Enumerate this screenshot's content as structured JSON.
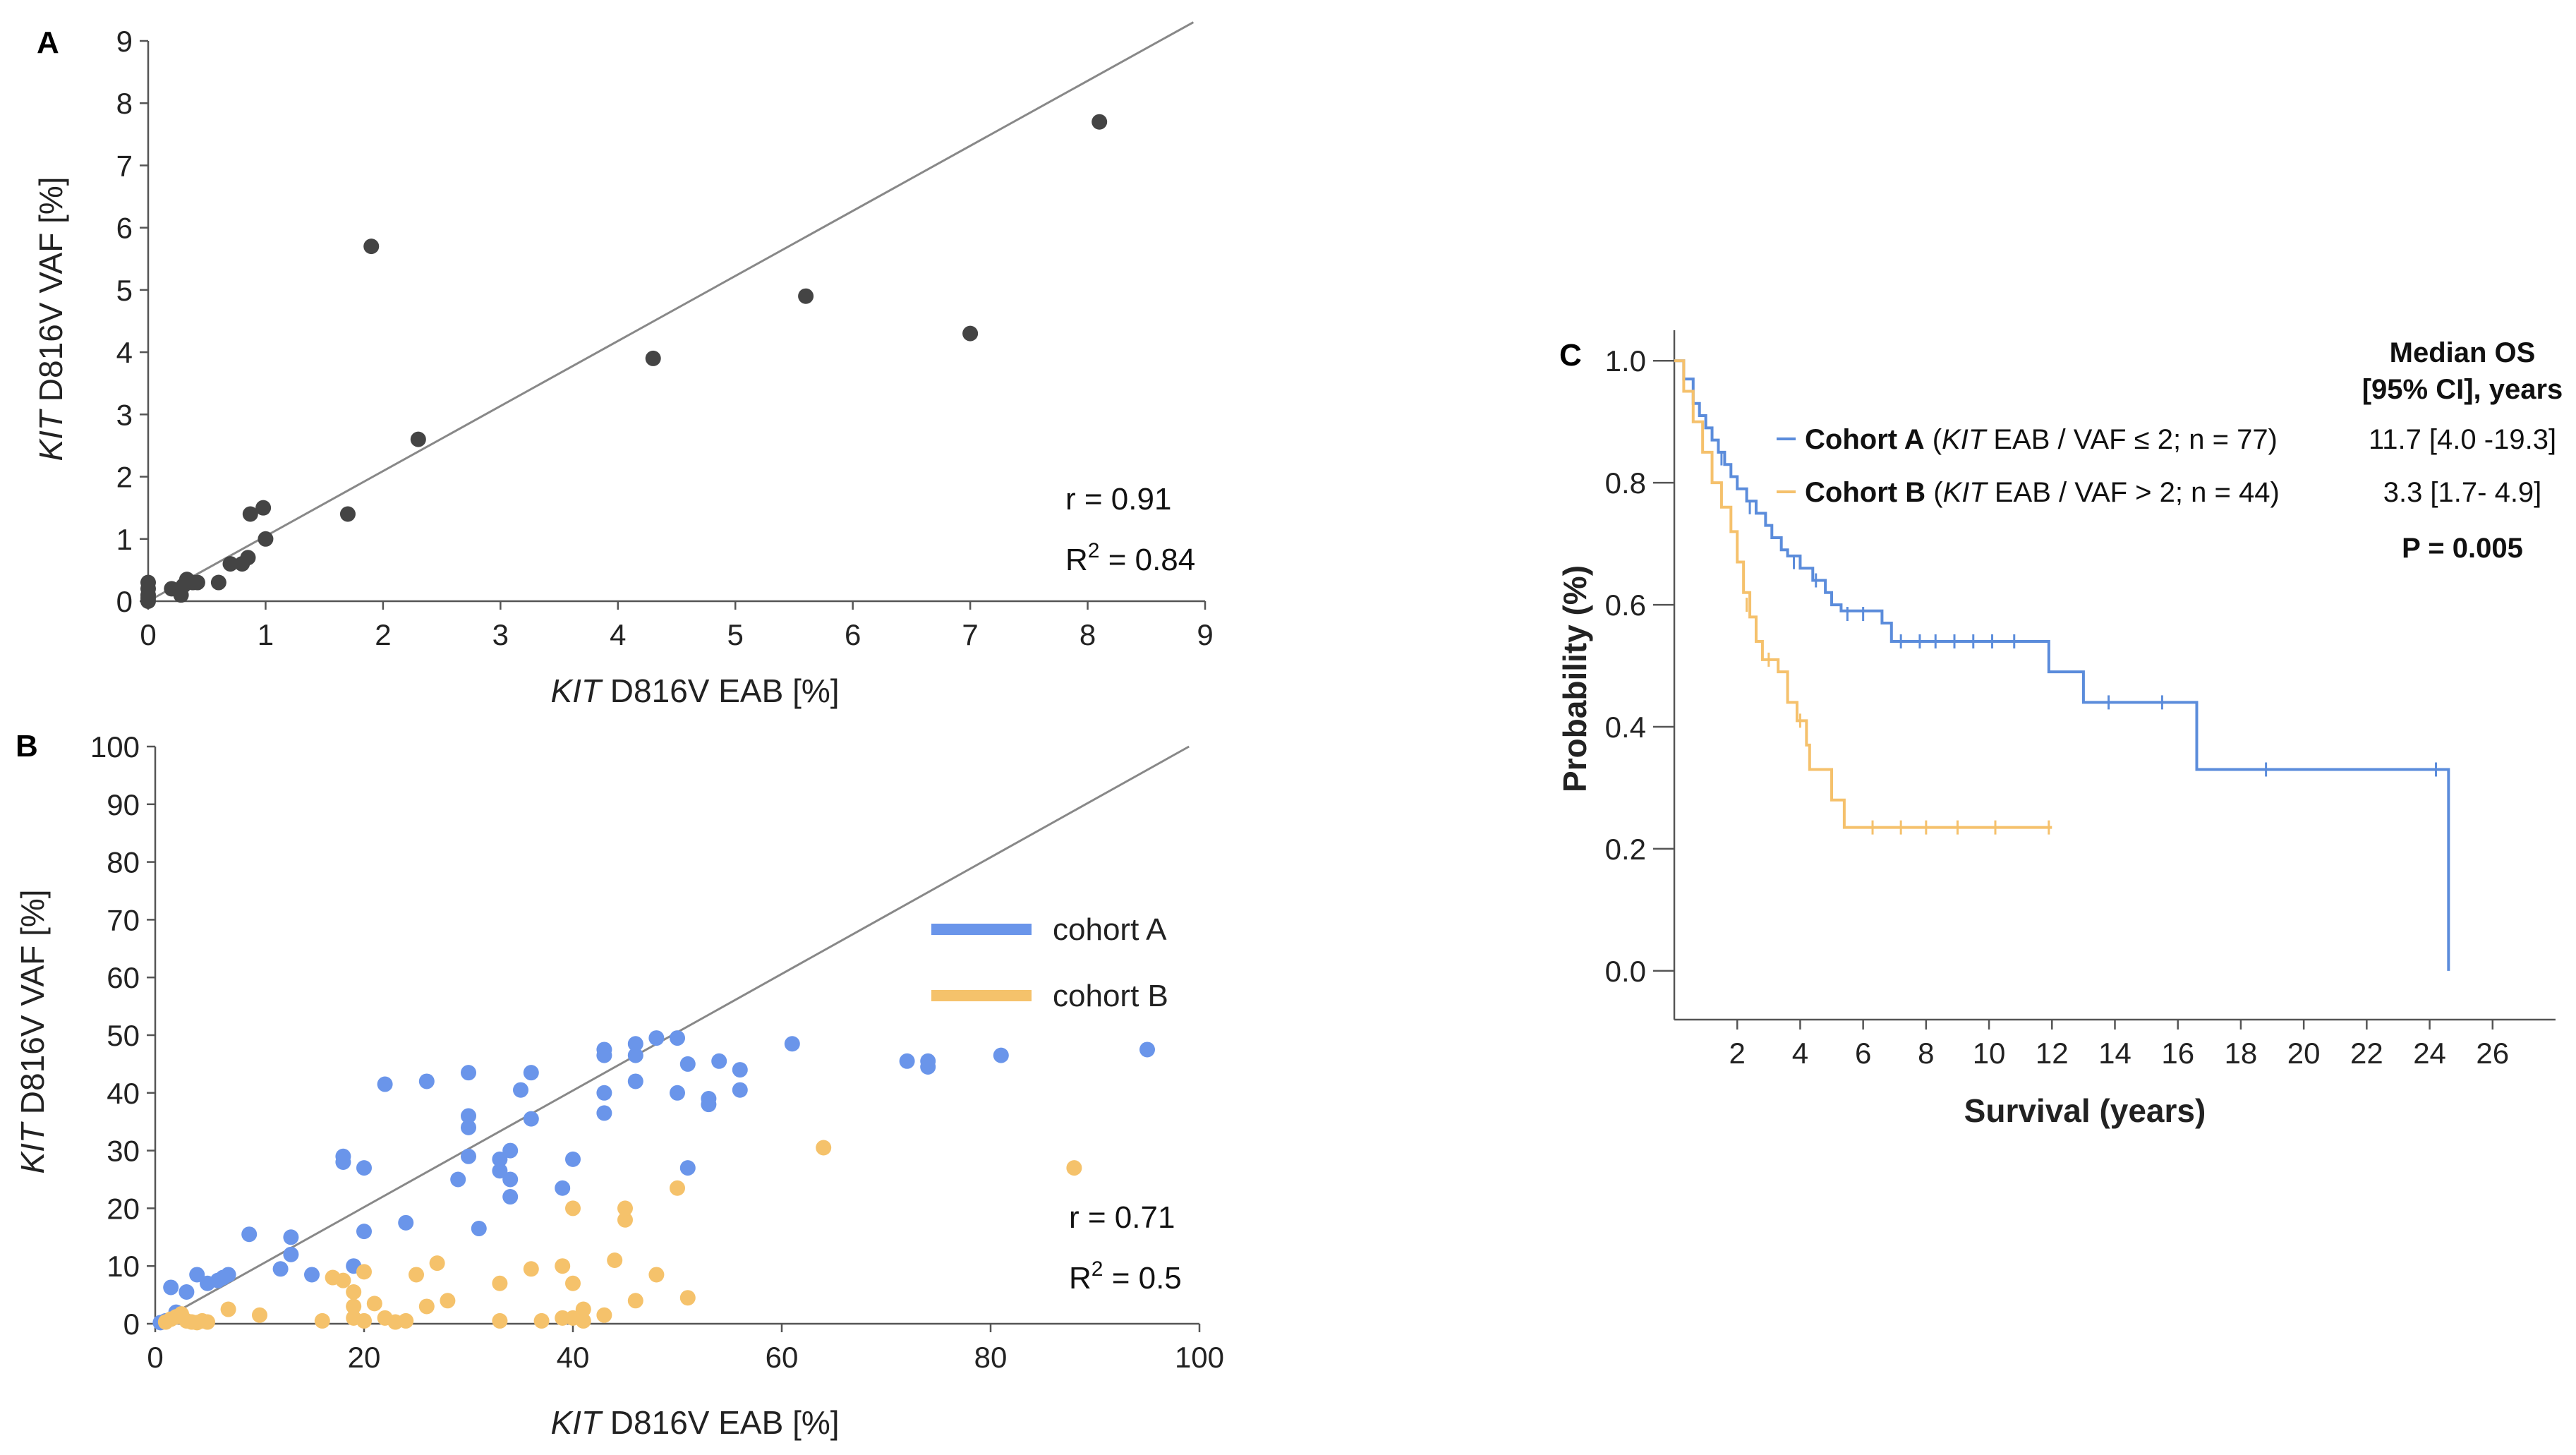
{
  "chart_data": [
    {
      "panel": "A",
      "type": "scatter",
      "xlabel_italic": "KIT",
      "xlabel_rest": " D816V EAB [%]",
      "ylabel_italic": "KIT",
      "ylabel_rest": " D816V VAF [%]",
      "xlim": [
        0,
        9
      ],
      "ylim": [
        0,
        9
      ],
      "xticks": [
        0,
        1,
        2,
        3,
        4,
        5,
        6,
        7,
        8,
        9
      ],
      "yticks": [
        0,
        1,
        2,
        3,
        4,
        5,
        6,
        7,
        8,
        9
      ],
      "stat_r": "r = 0.91",
      "stat_r2_prefix": "R",
      "stat_r2_sup": "2",
      "stat_r2_suffix": " = 0.84",
      "identity_line": [
        [
          0,
          0
        ],
        [
          8.9,
          9.3
        ]
      ],
      "point_color": "#444444",
      "points": [
        [
          0,
          0
        ],
        [
          0,
          0.05
        ],
        [
          0,
          0.1
        ],
        [
          0,
          0.2
        ],
        [
          0,
          0.3
        ],
        [
          0.2,
          0.2
        ],
        [
          0.28,
          0.1
        ],
        [
          0.3,
          0.25
        ],
        [
          0.33,
          0.35
        ],
        [
          0.38,
          0.3
        ],
        [
          0.42,
          0.3
        ],
        [
          0.6,
          0.3
        ],
        [
          0.7,
          0.6
        ],
        [
          0.8,
          0.6
        ],
        [
          0.85,
          0.7
        ],
        [
          0.87,
          1.4
        ],
        [
          0.98,
          1.5
        ],
        [
          1.0,
          1.0
        ],
        [
          1.7,
          1.4
        ],
        [
          1.9,
          5.7
        ],
        [
          2.3,
          2.6
        ],
        [
          4.3,
          3.9
        ],
        [
          5.6,
          4.9
        ],
        [
          7.0,
          4.3
        ],
        [
          8.1,
          7.7
        ]
      ]
    },
    {
      "panel": "B",
      "type": "scatter",
      "xlabel_italic": "KIT",
      "xlabel_rest": " D816V EAB [%]",
      "ylabel_italic": "KIT",
      "ylabel_rest": " D816V VAF [%]",
      "xlim": [
        0,
        100
      ],
      "ylim": [
        0,
        100
      ],
      "xticks": [
        0,
        20,
        40,
        60,
        80,
        100
      ],
      "yticks": [
        0,
        10,
        20,
        30,
        40,
        50,
        60,
        70,
        80,
        90,
        100
      ],
      "stat_r": "r = 0.71",
      "stat_r2_prefix": "R",
      "stat_r2_sup": "2",
      "stat_r2_suffix": " = 0.5",
      "identity_line": [
        [
          0,
          0
        ],
        [
          99,
          100
        ]
      ],
      "legend": "top-right",
      "series": [
        {
          "name": "cohort A",
          "color": "#6a95ea",
          "points": [
            [
              0.5,
              0.2
            ],
            [
              1,
              0.5
            ],
            [
              1.5,
              6.3
            ],
            [
              2,
              2
            ],
            [
              3,
              5.5
            ],
            [
              4,
              8.5
            ],
            [
              5,
              7
            ],
            [
              6,
              7.5
            ],
            [
              6.5,
              8
            ],
            [
              7,
              8.5
            ],
            [
              9,
              15.5
            ],
            [
              12,
              9.5
            ],
            [
              13,
              12
            ],
            [
              13,
              15
            ],
            [
              15,
              8.5
            ],
            [
              18,
              28
            ],
            [
              18,
              29
            ],
            [
              19,
              10
            ],
            [
              20,
              27
            ],
            [
              20,
              16
            ],
            [
              22,
              41.5
            ],
            [
              24,
              17.5
            ],
            [
              26,
              42
            ],
            [
              29,
              25
            ],
            [
              30,
              34
            ],
            [
              30,
              36
            ],
            [
              30,
              43.5
            ],
            [
              30,
              29
            ],
            [
              31,
              16.5
            ],
            [
              33,
              26.5
            ],
            [
              33,
              28.5
            ],
            [
              34,
              30
            ],
            [
              34,
              22
            ],
            [
              34,
              25
            ],
            [
              35,
              40.5
            ],
            [
              36,
              43.5
            ],
            [
              36,
              35.5
            ],
            [
              39,
              23.5
            ],
            [
              40,
              28.5
            ],
            [
              43,
              36.5
            ],
            [
              43,
              40
            ],
            [
              43,
              46.5
            ],
            [
              43,
              47.5
            ],
            [
              46,
              42
            ],
            [
              46,
              46.5
            ],
            [
              46,
              48.5
            ],
            [
              48,
              49.5
            ],
            [
              50,
              49.5
            ],
            [
              50,
              40
            ],
            [
              51,
              45
            ],
            [
              51,
              27
            ],
            [
              53,
              38
            ],
            [
              53,
              39
            ],
            [
              54,
              45.5
            ],
            [
              56,
              44
            ],
            [
              56,
              40.5
            ],
            [
              61,
              48.5
            ],
            [
              72,
              45.5
            ],
            [
              74,
              44.5
            ],
            [
              74,
              45.5
            ],
            [
              81,
              46.5
            ],
            [
              95,
              47.5
            ]
          ]
        },
        {
          "name": "cohort B",
          "color": "#f5c26b",
          "points": [
            [
              1,
              0.3
            ],
            [
              1.5,
              0.8
            ],
            [
              2,
              1.2
            ],
            [
              2.5,
              1.7
            ],
            [
              3,
              0.5
            ],
            [
              3.5,
              0.3
            ],
            [
              4,
              0.2
            ],
            [
              4.5,
              0.5
            ],
            [
              5,
              0.3
            ],
            [
              7,
              2.5
            ],
            [
              10,
              1.5
            ],
            [
              16,
              0.5
            ],
            [
              17,
              8
            ],
            [
              18,
              7.5
            ],
            [
              19,
              1
            ],
            [
              19,
              3
            ],
            [
              19,
              5.5
            ],
            [
              20,
              0.5
            ],
            [
              20,
              9
            ],
            [
              21,
              3.5
            ],
            [
              22,
              1
            ],
            [
              23,
              0.3
            ],
            [
              24,
              0.5
            ],
            [
              25,
              8.5
            ],
            [
              26,
              3
            ],
            [
              27,
              10.5
            ],
            [
              28,
              4
            ],
            [
              33,
              0.5
            ],
            [
              33,
              7
            ],
            [
              36,
              9.5
            ],
            [
              37,
              0.5
            ],
            [
              39,
              1
            ],
            [
              39,
              10
            ],
            [
              40,
              7
            ],
            [
              40,
              1
            ],
            [
              40,
              20
            ],
            [
              41,
              2.5
            ],
            [
              41,
              0.5
            ],
            [
              43,
              1.5
            ],
            [
              44,
              11
            ],
            [
              45,
              18
            ],
            [
              45,
              20
            ],
            [
              46,
              4
            ],
            [
              48,
              8.5
            ],
            [
              50,
              23.5
            ],
            [
              51,
              4.5
            ],
            [
              64,
              30.5
            ],
            [
              88,
              27
            ]
          ]
        }
      ]
    },
    {
      "panel": "C",
      "type": "line",
      "subtype": "kaplan-meier",
      "xlabel": "Survival (years)",
      "ylabel": "Probability (%)",
      "xlim": [
        0,
        28
      ],
      "ylim": [
        -0.08,
        1.05
      ],
      "xticks": [
        2,
        4,
        6,
        8,
        10,
        12,
        14,
        16,
        18,
        20,
        22,
        24,
        26
      ],
      "yticks": [
        0.0,
        0.2,
        0.4,
        0.6,
        0.8,
        1.0
      ],
      "ytick_labels": [
        "0.0",
        "0.2",
        "0.4",
        "0.6",
        "0.8",
        "1.0"
      ],
      "header_line1": "Median OS",
      "header_line2": "[95% CI], years",
      "p_value": "P = 0.005",
      "series": [
        {
          "name_bold": "Cohort A",
          "name_open": " (",
          "name_italic": "KIT",
          "name_rest": " EAB / VAF ≤ 2; n = 77)",
          "median": "11.7 [4.0 -19.3]",
          "color": "#5b8cdb",
          "steps": [
            [
              0,
              1.0
            ],
            [
              0.3,
              0.97
            ],
            [
              0.6,
              0.93
            ],
            [
              0.8,
              0.91
            ],
            [
              1.0,
              0.89
            ],
            [
              1.2,
              0.87
            ],
            [
              1.4,
              0.85
            ],
            [
              1.6,
              0.83
            ],
            [
              1.8,
              0.81
            ],
            [
              2.0,
              0.79
            ],
            [
              2.3,
              0.77
            ],
            [
              2.6,
              0.75
            ],
            [
              2.9,
              0.73
            ],
            [
              3.1,
              0.71
            ],
            [
              3.4,
              0.69
            ],
            [
              3.6,
              0.68
            ],
            [
              4.0,
              0.66
            ],
            [
              4.4,
              0.64
            ],
            [
              4.8,
              0.62
            ],
            [
              5.0,
              0.6
            ],
            [
              5.3,
              0.59
            ],
            [
              6.6,
              0.57
            ],
            [
              6.9,
              0.54
            ],
            [
              11.9,
              0.49
            ],
            [
              13.0,
              0.44
            ],
            [
              16.6,
              0.33
            ],
            [
              24.6,
              0.0
            ]
          ],
          "censor": [
            [
              1.5,
              0.84
            ],
            [
              2.4,
              0.76
            ],
            [
              3.8,
              0.67
            ],
            [
              4.5,
              0.64
            ],
            [
              5.5,
              0.585
            ],
            [
              6.0,
              0.585
            ],
            [
              7.2,
              0.54
            ],
            [
              7.8,
              0.54
            ],
            [
              8.3,
              0.54
            ],
            [
              8.9,
              0.54
            ],
            [
              9.5,
              0.54
            ],
            [
              10.1,
              0.54
            ],
            [
              10.8,
              0.54
            ],
            [
              13.8,
              0.44
            ],
            [
              15.5,
              0.44
            ],
            [
              18.8,
              0.33
            ],
            [
              24.2,
              0.33
            ]
          ]
        },
        {
          "name_bold": "Cohort B",
          "name_open": " (",
          "name_italic": "KIT",
          "name_rest": " EAB / VAF > 2; n = 44)",
          "median": "3.3 [1.7- 4.9]",
          "color": "#f5c16c",
          "steps": [
            [
              0,
              1.0
            ],
            [
              0.3,
              0.95
            ],
            [
              0.6,
              0.9
            ],
            [
              0.9,
              0.85
            ],
            [
              1.2,
              0.8
            ],
            [
              1.5,
              0.76
            ],
            [
              1.8,
              0.72
            ],
            [
              2.0,
              0.67
            ],
            [
              2.2,
              0.62
            ],
            [
              2.4,
              0.58
            ],
            [
              2.6,
              0.54
            ],
            [
              2.8,
              0.51
            ],
            [
              3.3,
              0.49
            ],
            [
              3.6,
              0.44
            ],
            [
              3.9,
              0.41
            ],
            [
              4.2,
              0.37
            ],
            [
              4.3,
              0.33
            ],
            [
              5.0,
              0.28
            ],
            [
              5.4,
              0.235
            ],
            [
              12.0,
              0.235
            ]
          ],
          "censor": [
            [
              2.3,
              0.6
            ],
            [
              3.0,
              0.51
            ],
            [
              4.0,
              0.41
            ],
            [
              6.3,
              0.235
            ],
            [
              7.2,
              0.235
            ],
            [
              8.0,
              0.235
            ],
            [
              9.0,
              0.235
            ],
            [
              10.2,
              0.235
            ],
            [
              11.9,
              0.235
            ]
          ]
        }
      ]
    }
  ]
}
